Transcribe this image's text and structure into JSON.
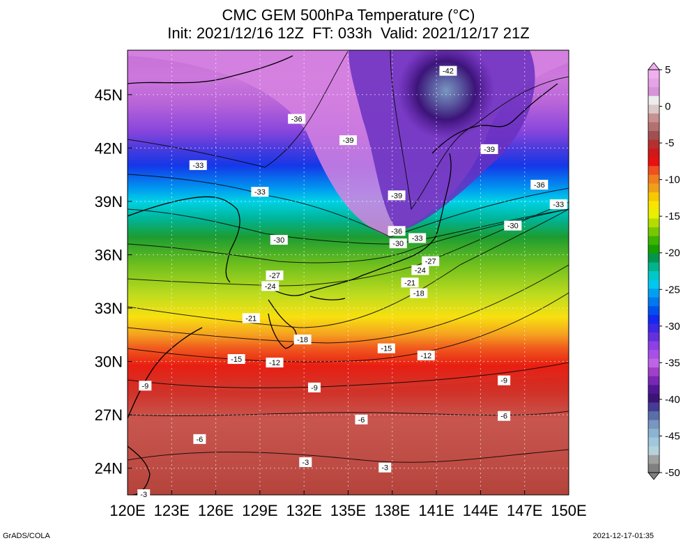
{
  "title_line1": "CMC GEM 500hPa Temperature (°C)",
  "title_line2": "Init: 2021/12/16 12Z  FT: 033h  Valid: 2021/12/17 21Z",
  "footer_left": "GrADS/COLA",
  "footer_right": "2021-12-17-01:35",
  "chart_data": {
    "type": "heatmap",
    "title": "CMC GEM 500hPa Temperature (°C)",
    "x_ticks": [
      "120E",
      "123E",
      "126E",
      "129E",
      "132E",
      "135E",
      "138E",
      "141E",
      "144E",
      "147E",
      "150E"
    ],
    "y_ticks": [
      "24N",
      "27N",
      "30N",
      "33N",
      "36N",
      "39N",
      "42N",
      "45N"
    ],
    "x_range": [
      120,
      150
    ],
    "y_range": [
      22.5,
      47.5
    ],
    "colorbar_labels": [
      "5",
      "0",
      "-5",
      "-10",
      "-15",
      "-20",
      "-25",
      "-30",
      "-35",
      "-40",
      "-45",
      "-50"
    ],
    "colorbar_colors": [
      "#f0b0f0",
      "#e8a2e8",
      "#d894d8",
      "#ededed",
      "#dcc8c8",
      "#c89090",
      "#b47070",
      "#a05050",
      "#b43030",
      "#d01818",
      "#e81010",
      "#f05020",
      "#f07d20",
      "#f0a018",
      "#f8c800",
      "#f8e600",
      "#e6f000",
      "#b4dc00",
      "#78c800",
      "#3cb400",
      "#14a000",
      "#009650",
      "#00b48c",
      "#00c8c8",
      "#00c8f0",
      "#00a0f0",
      "#0078f0",
      "#0050f0",
      "#1428f0",
      "#3c28e6",
      "#6430dc",
      "#8c40e6",
      "#a850e6",
      "#be64e6",
      "#a040c8",
      "#7828b4",
      "#501896",
      "#3c1478",
      "#463c96",
      "#5a6eaa",
      "#7896c0",
      "#8cb4d2",
      "#a0c8dc",
      "#b4d2dc",
      "#a0a0a0",
      "#808080"
    ],
    "contour_labels": [
      {
        "value": "-42",
        "lon": 141.8,
        "lat": 46.3
      },
      {
        "value": "-36",
        "lon": 131.5,
        "lat": 43.6
      },
      {
        "value": "-39",
        "lon": 135.0,
        "lat": 42.4
      },
      {
        "value": "-39",
        "lon": 144.6,
        "lat": 41.9
      },
      {
        "value": "-33",
        "lon": 124.8,
        "lat": 41.0
      },
      {
        "value": "-36",
        "lon": 148.0,
        "lat": 39.9
      },
      {
        "value": "-33",
        "lon": 129.0,
        "lat": 39.5
      },
      {
        "value": "-39",
        "lon": 138.3,
        "lat": 39.3
      },
      {
        "value": "-33",
        "lon": 149.3,
        "lat": 38.8
      },
      {
        "value": "-30",
        "lon": 146.2,
        "lat": 37.6
      },
      {
        "value": "-36",
        "lon": 138.3,
        "lat": 37.3
      },
      {
        "value": "-33",
        "lon": 139.7,
        "lat": 36.9
      },
      {
        "value": "-30",
        "lon": 130.3,
        "lat": 36.8
      },
      {
        "value": "-30",
        "lon": 138.4,
        "lat": 36.6
      },
      {
        "value": "-27",
        "lon": 140.6,
        "lat": 35.6
      },
      {
        "value": "-24",
        "lon": 139.9,
        "lat": 35.1
      },
      {
        "value": "-27",
        "lon": 130.0,
        "lat": 34.8
      },
      {
        "value": "-24",
        "lon": 129.7,
        "lat": 34.2
      },
      {
        "value": "-21",
        "lon": 139.2,
        "lat": 34.4
      },
      {
        "value": "-18",
        "lon": 139.8,
        "lat": 33.8
      },
      {
        "value": "-21",
        "lon": 128.4,
        "lat": 32.4
      },
      {
        "value": "-18",
        "lon": 131.9,
        "lat": 31.2
      },
      {
        "value": "-15",
        "lon": 137.6,
        "lat": 30.7
      },
      {
        "value": "-15",
        "lon": 127.4,
        "lat": 30.1
      },
      {
        "value": "-12",
        "lon": 140.3,
        "lat": 30.3
      },
      {
        "value": "-12",
        "lon": 130.0,
        "lat": 29.9
      },
      {
        "value": "-9",
        "lon": 145.6,
        "lat": 28.9
      },
      {
        "value": "-9",
        "lon": 121.2,
        "lat": 28.6
      },
      {
        "value": "-9",
        "lon": 132.7,
        "lat": 28.5
      },
      {
        "value": "-6",
        "lon": 145.6,
        "lat": 26.9
      },
      {
        "value": "-6",
        "lon": 135.9,
        "lat": 26.7
      },
      {
        "value": "-6",
        "lon": 124.9,
        "lat": 25.6
      },
      {
        "value": "-3",
        "lon": 132.1,
        "lat": 24.3
      },
      {
        "value": "-3",
        "lon": 137.5,
        "lat": 24.0
      },
      {
        "value": "-3",
        "lon": 121.1,
        "lat": 22.5
      }
    ]
  }
}
